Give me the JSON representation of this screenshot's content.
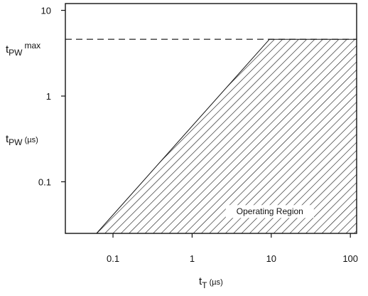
{
  "chart_data": {
    "type": "area",
    "x_scale": "log",
    "y_scale": "log",
    "xlim": [
      0.025,
      120
    ],
    "ylim": [
      0.025,
      12
    ],
    "x_ticks": [
      {
        "value": 0.1,
        "label": "0.1"
      },
      {
        "value": 1,
        "label": "1"
      },
      {
        "value": 10,
        "label": "10"
      },
      {
        "value": 100,
        "label": "100"
      }
    ],
    "y_ticks": [
      {
        "value": 0.1,
        "label": "0.1"
      },
      {
        "value": 1,
        "label": "1"
      },
      {
        "value": 10,
        "label": "10"
      }
    ],
    "xlabel": {
      "main": "t",
      "sub": "T",
      "unit": " (µs)"
    },
    "ylabel": {
      "main": "t",
      "sub": "PW",
      "unit": " (µs)"
    },
    "max_label": {
      "main": "t",
      "sub": "PW",
      "sup": "max"
    },
    "tpw_max": 4.6,
    "region": {
      "label": "Operating Region",
      "boundary": [
        {
          "x": 0.062,
          "y": 0.025
        },
        {
          "x": 9.5,
          "y": 4.6
        },
        {
          "x": 120,
          "y": 4.6
        },
        {
          "x": 120,
          "y": 0.025
        }
      ]
    },
    "grid": false
  }
}
